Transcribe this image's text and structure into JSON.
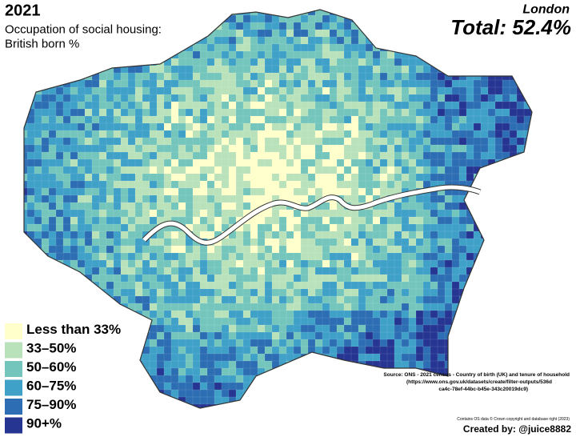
{
  "header": {
    "year": "2021",
    "subtitle_lines": [
      "Occupation of social housing:",
      "British born %"
    ],
    "region": "London",
    "total": "Total: 52.4%"
  },
  "legend": {
    "items": [
      {
        "label": "Less than 33%",
        "color": "#ffffcc"
      },
      {
        "label": "33–50%",
        "color": "#b9e2bb"
      },
      {
        "label": "50–60%",
        "color": "#74c6bd"
      },
      {
        "label": "60–75%",
        "color": "#3fa0c8"
      },
      {
        "label": "75–90%",
        "color": "#2c6db3"
      },
      {
        "label": "90+%",
        "color": "#263592"
      }
    ]
  },
  "source": {
    "lines": [
      "Source: ONS - 2021 census - Country of birth (UK) and tenure of household",
      "(https://www.ons.gov.uk/datasets/create/filter-outputs/536d",
      "ca4c-78ef-44bc-b45e-343c20019dc9)"
    ],
    "copyright": "Contains OS data © Crown copyright and database right (2023)",
    "credit": "Created by: @juice8882"
  }
}
